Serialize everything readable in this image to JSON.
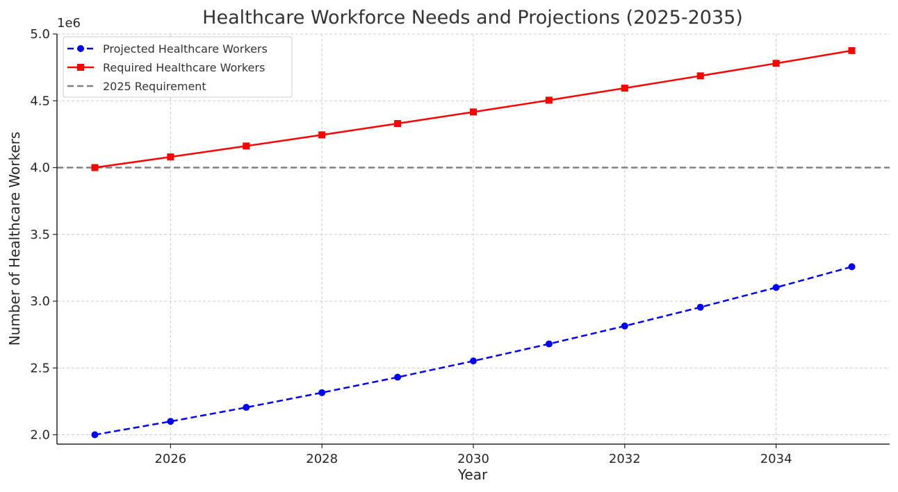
{
  "chart_data": {
    "type": "line",
    "title": "Healthcare Workforce Needs and Projections (2025-2035)",
    "xlabel": "Year",
    "ylabel": "Number of Healthcare Workers",
    "y_offset_label": "1e6",
    "xlim": [
      2024.5,
      2035.5
    ],
    "ylim": [
      1.93,
      5.0
    ],
    "y_scale": 1000000,
    "x_ticks": [
      2026,
      2028,
      2030,
      2032,
      2034
    ],
    "y_ticks": [
      2.0,
      2.5,
      3.0,
      3.5,
      4.0,
      4.5,
      5.0
    ],
    "y_tick_labels": [
      "2.0",
      "2.5",
      "3.0",
      "3.5",
      "4.0",
      "4.5",
      "5.0"
    ],
    "grid": true,
    "legend_position": "top-left",
    "x": [
      2025,
      2026,
      2027,
      2028,
      2029,
      2030,
      2031,
      2032,
      2033,
      2034,
      2035
    ],
    "series": [
      {
        "name": "Projected Healthcare Workers",
        "color": "#0000ff",
        "line_style": "dashed",
        "marker": "circle",
        "values": [
          2000000,
          2100000,
          2205000,
          2315250,
          2431013,
          2552563,
          2680191,
          2814201,
          2954911,
          3102656,
          3257789
        ]
      },
      {
        "name": "Required Healthcare Workers",
        "color": "#ff0000",
        "line_style": "solid",
        "marker": "square",
        "values": [
          4000000,
          4080000,
          4161600,
          4244832,
          4329729,
          4416323,
          4504650,
          4594743,
          4686638,
          4780370,
          4875978
        ]
      }
    ],
    "reference_lines": [
      {
        "name": "2025 Requirement",
        "color": "#808080",
        "line_style": "dashed",
        "value": 4000000
      }
    ]
  }
}
